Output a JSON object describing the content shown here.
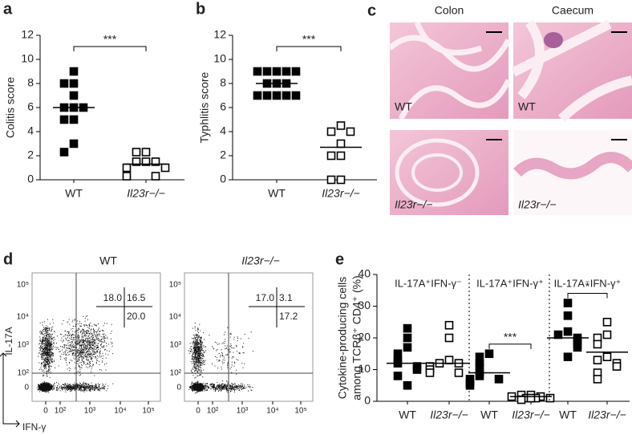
{
  "chart_data": [
    {
      "type": "scatter",
      "panel_label": "a",
      "ylabel": [
        "Colitis score"
      ],
      "categories": [
        "WT",
        "Il23r−/−"
      ],
      "values": [
        [
          9,
          8,
          8,
          7,
          6,
          6,
          6,
          5,
          5,
          3,
          2.3
        ],
        [
          2.3,
          2.3,
          1.5,
          1.5,
          1.5,
          1,
          1,
          0.3,
          0.3
        ]
      ],
      "means": [
        6,
        1.3
      ],
      "marker_fill": [
        "#000000",
        "#ffffff"
      ],
      "ylim": [
        0,
        12
      ],
      "yticks": [
        0,
        2,
        4,
        6,
        8,
        10,
        12
      ],
      "significance": "***"
    },
    {
      "type": "scatter",
      "panel_label": "b",
      "ylabel": [
        "Typhlitis score"
      ],
      "categories": [
        "WT",
        "Il23r−/−"
      ],
      "values": [
        [
          9,
          9,
          9,
          9,
          9,
          8,
          8,
          8,
          7,
          7,
          7,
          7,
          7
        ],
        [
          4.5,
          4,
          4,
          3,
          2,
          2,
          0,
          0
        ]
      ],
      "means": [
        8,
        2.7
      ],
      "marker_fill": [
        "#000000",
        "#ffffff"
      ],
      "ylim": [
        0,
        12
      ],
      "yticks": [
        0,
        2,
        4,
        6,
        8,
        10,
        12
      ],
      "significance": "***"
    },
    {
      "type": "scatter",
      "panel_label": "e",
      "ylabel": [
        "Cytokine-producing cells",
        "among TCRβ⁺ CD4⁺ (%)"
      ],
      "categories": [
        "WT",
        "Il23r−/−",
        "WT",
        "Il23r−/−",
        "WT",
        "Il23r−/−"
      ],
      "values": [
        [
          23,
          20,
          17,
          15,
          13,
          12,
          11,
          10,
          8,
          5
        ],
        [
          24,
          20,
          13,
          12,
          12,
          11,
          10,
          9,
          9
        ],
        [
          15,
          14,
          12,
          11,
          9,
          8,
          7,
          7,
          6,
          5
        ],
        [
          2,
          2,
          1.5,
          1.5,
          1,
          1,
          1,
          1,
          0.5
        ],
        [
          31,
          27,
          22,
          21,
          20,
          19,
          18,
          17,
          14
        ],
        [
          25,
          21,
          20,
          18,
          14,
          13,
          12,
          11,
          9,
          7
        ]
      ],
      "means": [
        12,
        12,
        9,
        1.5,
        20,
        15.5
      ],
      "marker_fill": [
        "#000000",
        "#ffffff"
      ],
      "ylim": [
        0,
        40
      ],
      "yticks": [
        0,
        10,
        20,
        30,
        40
      ],
      "groups": [
        {
          "label": "IL-17A⁺IFN-γ⁻"
        },
        {
          "label": "IL-17A⁺IFN-γ⁺",
          "significance": "***"
        },
        {
          "label": "IL-17A⁻IFN-γ⁺",
          "significance": "*"
        }
      ]
    }
  ],
  "histology": {
    "panel_label": "c",
    "columns": [
      "Colon",
      "Caecum"
    ],
    "row_labels": [
      "WT",
      "Il23r−/−"
    ]
  },
  "flow": {
    "panel_label": "d",
    "x_label": "IFN-γ",
    "y_label": "IL-17A",
    "ticks": [
      "0",
      "10²",
      "10³",
      "10⁴",
      "10⁵"
    ],
    "plots": [
      {
        "title": "WT",
        "quadrant_values": [
          "18.0",
          "16.5",
          "20.0"
        ]
      },
      {
        "title": "Il23r−/−",
        "quadrant_values": [
          "17.0",
          "3.1",
          "17.2"
        ]
      }
    ]
  }
}
